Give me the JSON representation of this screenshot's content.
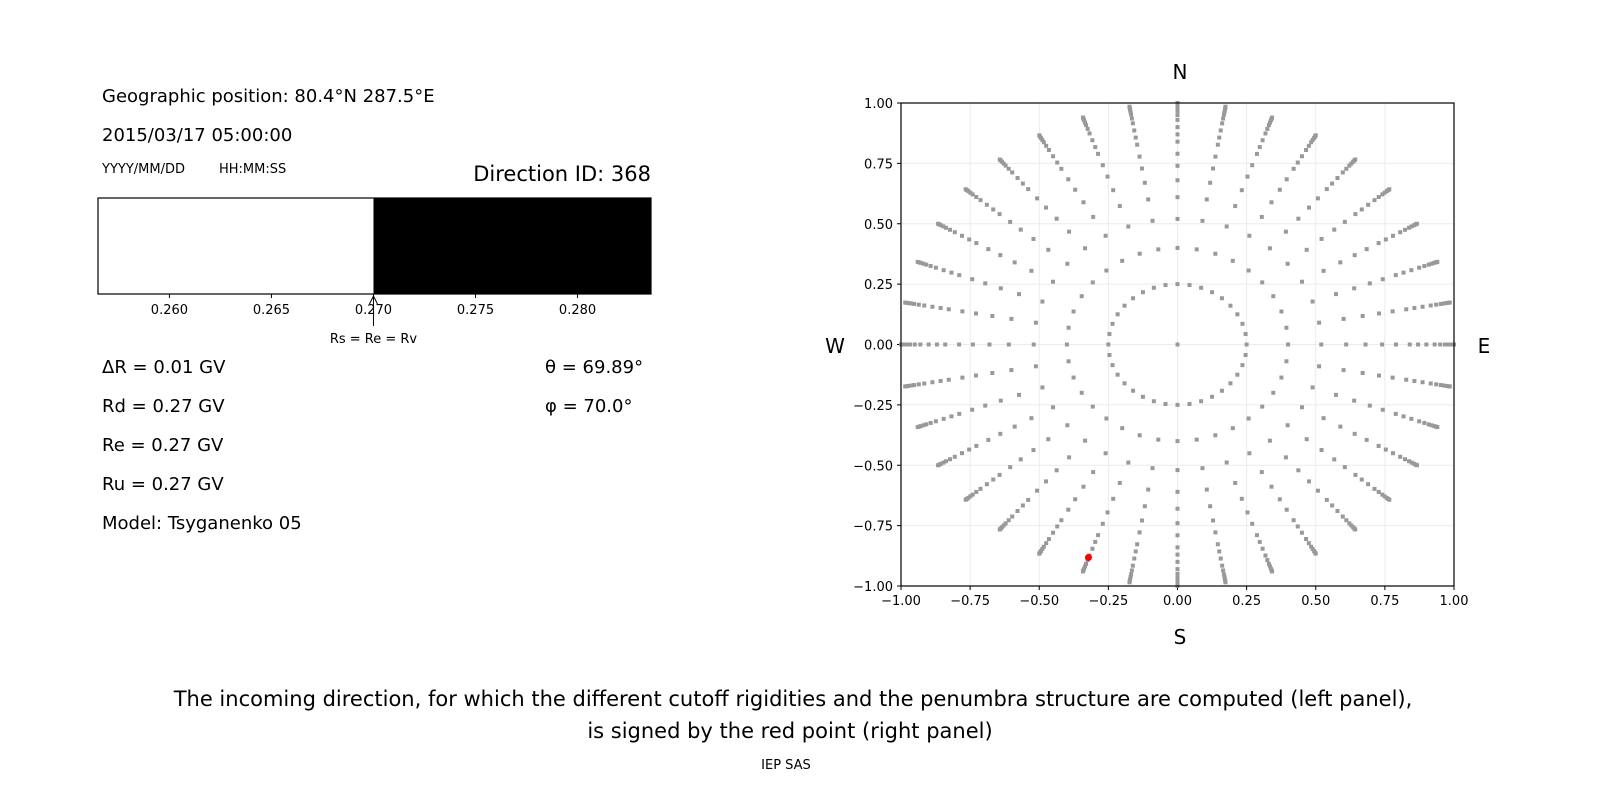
{
  "left_panel": {
    "geo_position": "Geographic position: 80.4°N 287.5°E",
    "datetime": "2015/03/17 05:00:00",
    "date_format": "YYYY/MM/DD",
    "time_format": "HH:MM:SS",
    "direction_id": "Direction ID: 368",
    "delta_r": "ΔR = 0.01 GV",
    "rd": "Rd = 0.27 GV",
    "re": "Re = 0.27 GV",
    "ru": "Ru = 0.27 GV",
    "model": "Model: Tsyganenko 05",
    "theta": "θ = 69.89°",
    "phi": "φ = 70.0°"
  },
  "right_panel": {
    "north": "N",
    "south": "S",
    "west": "W",
    "east": "E"
  },
  "caption": {
    "line1": "The incoming direction, for which the different cutoff rigidities and the penumbra structure are computed (left panel),",
    "line2": "is signed by the red point (right panel)",
    "credit": "IEP SAS"
  },
  "chart_data": [
    {
      "type": "bar",
      "xlim": [
        0.2565,
        0.2836
      ],
      "xticks": [
        "0.260",
        "0.265",
        "0.270",
        "0.275",
        "0.280"
      ],
      "xtick_values": [
        0.26,
        0.265,
        0.27,
        0.275,
        0.28
      ],
      "segments": [
        {
          "from": 0.2565,
          "to": 0.27,
          "color": "#ffffff"
        },
        {
          "from": 0.27,
          "to": 0.2836,
          "color": "#000000"
        }
      ],
      "annotation": {
        "text": "Rs = Re = Rv",
        "x": 0.27
      }
    },
    {
      "type": "scatter",
      "xlim": [
        -1,
        1
      ],
      "ylim": [
        -1,
        1
      ],
      "grid": true,
      "xticks": [
        "−1.00",
        "−0.75",
        "−0.50",
        "−0.25",
        "0.00",
        "0.25",
        "0.50",
        "0.75",
        "1.00"
      ],
      "yticks": [
        "1.00",
        "0.75",
        "0.50",
        "0.25",
        "0.00",
        "−0.25",
        "−0.50",
        "−0.75",
        "−1.00"
      ],
      "tick_values": [
        -1,
        -0.75,
        -0.5,
        -0.25,
        0,
        0.25,
        0.5,
        0.75,
        1
      ],
      "point_color": "#999999",
      "center_point": [
        0,
        0
      ],
      "inner_ring": {
        "radius": 0.25,
        "azimuth_step_deg": 10
      },
      "ray_azimuth_step_deg": 10,
      "ray_radii": [
        0.4,
        0.52,
        0.61,
        0.68,
        0.74,
        0.79,
        0.84,
        0.87,
        0.9,
        0.93,
        0.95,
        0.967,
        0.978,
        0.988,
        0.995,
        1.0
      ],
      "selected_point": {
        "x": -0.322,
        "y": -0.882,
        "color": "#ff0000"
      }
    }
  ]
}
